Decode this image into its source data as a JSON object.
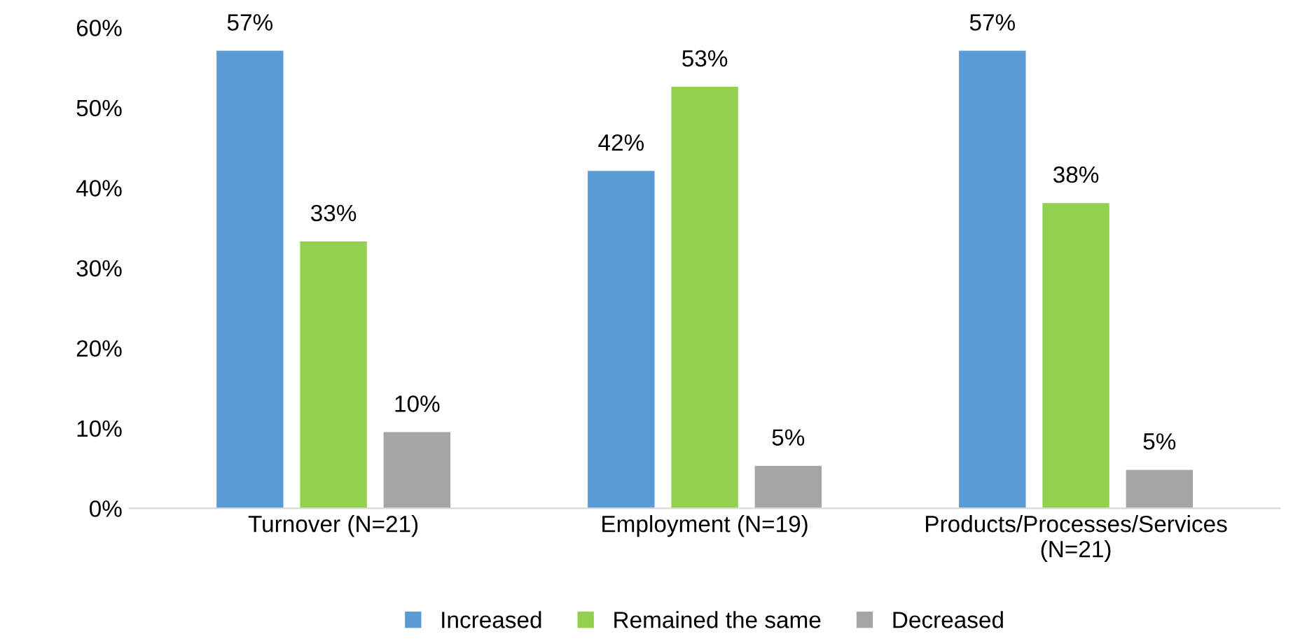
{
  "chart_data": {
    "type": "bar",
    "categories": [
      "Turnover (N=21)",
      "Employment (N=19)",
      "Products/Processes/Services\n(N=21)"
    ],
    "series": [
      {
        "name": "Increased",
        "color": "#5b9bd5",
        "values": [
          57.1,
          42.1,
          57.1
        ],
        "value_labels": [
          "57%",
          "42%",
          "57%"
        ]
      },
      {
        "name": "Remained the same",
        "color": "#92d050",
        "values": [
          33.3,
          52.6,
          38.1
        ],
        "value_labels": [
          "33%",
          "53%",
          "38%"
        ]
      },
      {
        "name": "Decreased",
        "color": "#a5a5a5",
        "values": [
          9.5,
          5.3,
          4.8
        ],
        "value_labels": [
          "10%",
          "5%",
          "5%"
        ]
      }
    ],
    "ylim": [
      0,
      60
    ],
    "yticks": [
      {
        "value": 0,
        "label": "0%"
      },
      {
        "value": 10,
        "label": "10%"
      },
      {
        "value": 20,
        "label": "20%"
      },
      {
        "value": 30,
        "label": "30%"
      },
      {
        "value": 40,
        "label": "40%"
      },
      {
        "value": 50,
        "label": "50%"
      },
      {
        "value": 60,
        "label": "60%"
      }
    ],
    "grid": false,
    "legend": "bottom"
  }
}
